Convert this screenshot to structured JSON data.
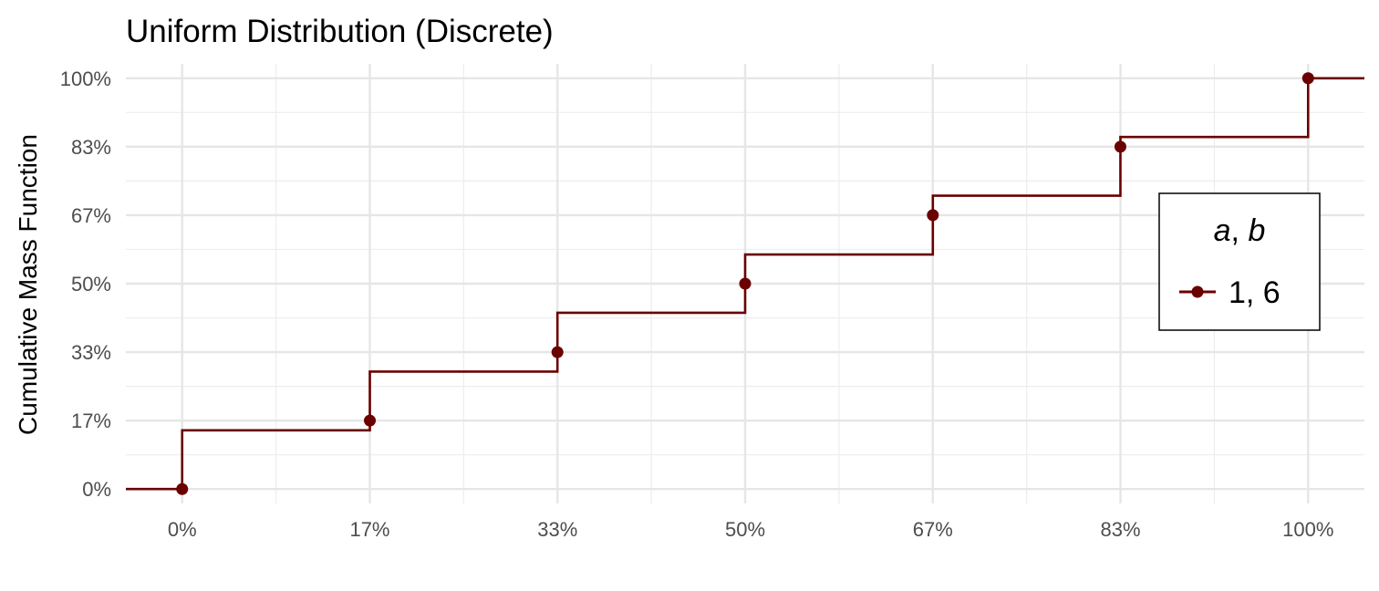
{
  "chart_data": {
    "type": "line",
    "title": "Uniform Distribution (Discrete)",
    "xlabel": "",
    "ylabel": "Cumulative Mass Function",
    "x_ticks": [
      "0%",
      "17%",
      "33%",
      "50%",
      "67%",
      "83%",
      "100%"
    ],
    "y_ticks": [
      "0%",
      "17%",
      "33%",
      "50%",
      "67%",
      "83%",
      "100%"
    ],
    "xlim": [
      -0.05,
      1.05
    ],
    "ylim": [
      -0.035,
      1.035
    ],
    "grid": true,
    "legend": {
      "title_a": "a",
      "title_sep": ", ",
      "title_b": "b",
      "placement": "right"
    },
    "series": [
      {
        "name": "1, 6",
        "color": "#6b0000",
        "render": "step",
        "step_x": [
          0,
          0.1667,
          0.3333,
          0.5,
          0.6667,
          0.8333,
          1.0
        ],
        "step_y": [
          0.143,
          0.286,
          0.429,
          0.571,
          0.714,
          0.857,
          1.0
        ],
        "points": [
          {
            "x": 0,
            "y": 0
          },
          {
            "x": 0.1667,
            "y": 0.1667
          },
          {
            "x": 0.3333,
            "y": 0.3333
          },
          {
            "x": 0.5,
            "y": 0.5
          },
          {
            "x": 0.6667,
            "y": 0.6667
          },
          {
            "x": 0.8333,
            "y": 0.8333
          },
          {
            "x": 1.0,
            "y": 1.0
          }
        ]
      }
    ]
  }
}
